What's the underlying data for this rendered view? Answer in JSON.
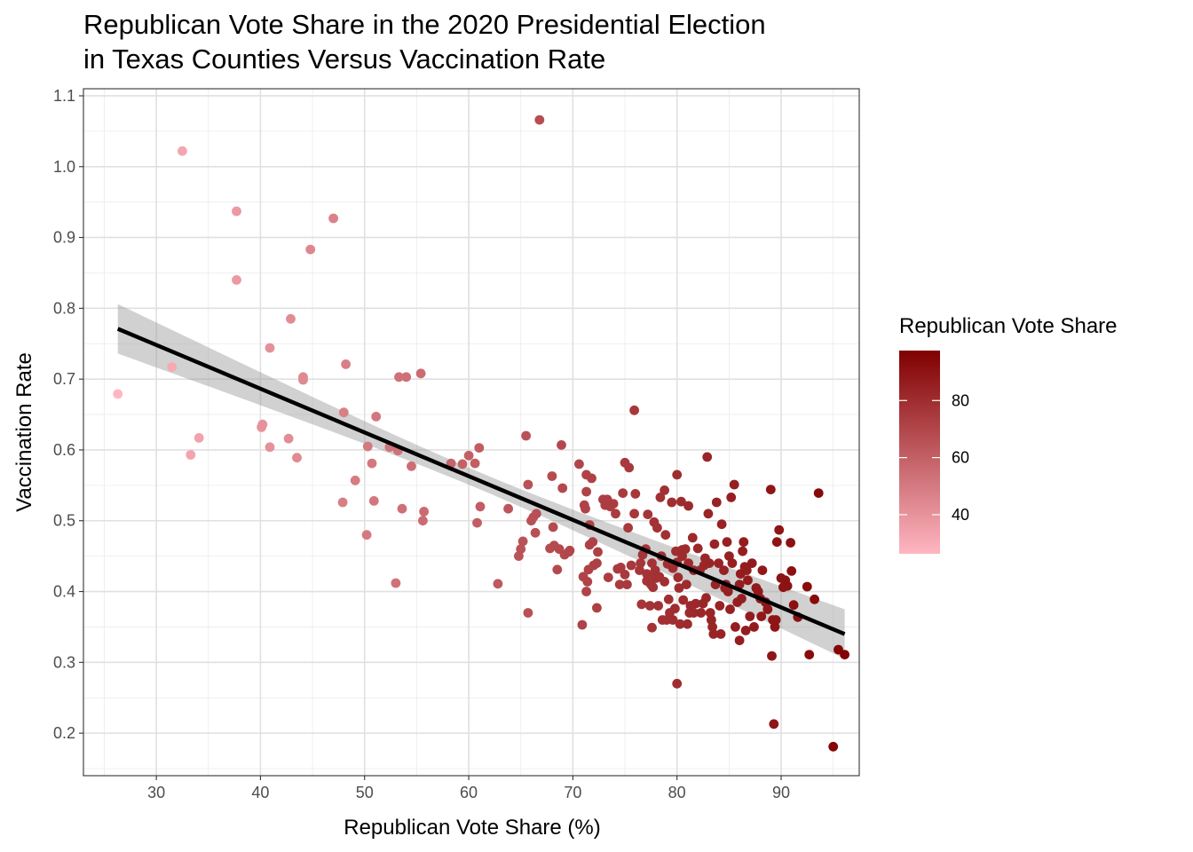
{
  "chart_data": {
    "type": "scatter",
    "title": "Republican Vote Share in the 2020 Presidential Election",
    "subtitle": "in Texas Counties Versus Vaccination Rate",
    "xlabel": "Republican Vote Share (%)",
    "ylabel": "Vaccination Rate",
    "xlim": [
      23,
      97.5
    ],
    "ylim": [
      0.14,
      1.11
    ],
    "x_ticks": [
      30,
      40,
      50,
      60,
      70,
      80,
      90
    ],
    "y_ticks": [
      0.2,
      0.3,
      0.4,
      0.5,
      0.6,
      0.7,
      0.8,
      0.9,
      1.0,
      1.1
    ],
    "x_tick_labels": [
      "30",
      "40",
      "50",
      "60",
      "70",
      "80",
      "90"
    ],
    "y_tick_labels": [
      "0.2",
      "0.3",
      "0.4",
      "0.5",
      "0.6",
      "0.7",
      "0.8",
      "0.9",
      "1.0",
      "1.1"
    ],
    "grid": true,
    "legend": {
      "title": "Republican Vote Share",
      "position": "right",
      "min": 26.3,
      "max": 97.5,
      "ticks": [
        40,
        60,
        80
      ],
      "tick_labels": [
        "40",
        "60",
        "80"
      ],
      "low_color": "#ffb6c1",
      "high_color": "#800000"
    },
    "trend": {
      "type": "linear",
      "x_range": [
        26.3,
        96.1
      ],
      "y_start": 0.771,
      "y_end": 0.34,
      "ci_halfwidth_ends": 0.035,
      "ci_halfwidth_mid": 0.012,
      "color": "#000000",
      "band_color": "#999999"
    },
    "points": [
      [
        26.3,
        0.679
      ],
      [
        31.5,
        0.717
      ],
      [
        32.5,
        1.022
      ],
      [
        33.3,
        0.593
      ],
      [
        34.1,
        0.617
      ],
      [
        37.7,
        0.937
      ],
      [
        37.7,
        0.84
      ],
      [
        40.1,
        0.632
      ],
      [
        40.2,
        0.636
      ],
      [
        40.9,
        0.744
      ],
      [
        40.9,
        0.604
      ],
      [
        42.7,
        0.616
      ],
      [
        42.9,
        0.785
      ],
      [
        43.5,
        0.589
      ],
      [
        44.1,
        0.703
      ],
      [
        44.1,
        0.699
      ],
      [
        44.8,
        0.883
      ],
      [
        47.0,
        0.927
      ],
      [
        47.9,
        0.526
      ],
      [
        48.0,
        0.653
      ],
      [
        48.2,
        0.721
      ],
      [
        49.1,
        0.557
      ],
      [
        50.2,
        0.48
      ],
      [
        50.3,
        0.605
      ],
      [
        50.7,
        0.581
      ],
      [
        50.9,
        0.528
      ],
      [
        51.1,
        0.647
      ],
      [
        52.4,
        0.604
      ],
      [
        53.0,
        0.412
      ],
      [
        53.2,
        0.599
      ],
      [
        53.3,
        0.703
      ],
      [
        53.6,
        0.517
      ],
      [
        54.0,
        0.703
      ],
      [
        54.5,
        0.577
      ],
      [
        55.4,
        0.708
      ],
      [
        55.6,
        0.5
      ],
      [
        55.7,
        0.513
      ],
      [
        58.3,
        0.581
      ],
      [
        59.4,
        0.58
      ],
      [
        60.0,
        0.592
      ],
      [
        60.6,
        0.581
      ],
      [
        60.8,
        0.497
      ],
      [
        61.0,
        0.603
      ],
      [
        61.1,
        0.52
      ],
      [
        62.8,
        0.411
      ],
      [
        63.8,
        0.517
      ],
      [
        64.8,
        0.45
      ],
      [
        65.0,
        0.46
      ],
      [
        65.2,
        0.471
      ],
      [
        65.5,
        0.62
      ],
      [
        65.7,
        0.551
      ],
      [
        65.7,
        0.37
      ],
      [
        66.0,
        0.5
      ],
      [
        66.2,
        0.505
      ],
      [
        66.4,
        0.483
      ],
      [
        66.5,
        0.51
      ],
      [
        66.8,
        1.066
      ],
      [
        67.8,
        0.461
      ],
      [
        68.0,
        0.563
      ],
      [
        68.1,
        0.491
      ],
      [
        68.2,
        0.465
      ],
      [
        68.5,
        0.431
      ],
      [
        68.7,
        0.46
      ],
      [
        68.9,
        0.607
      ],
      [
        69.0,
        0.546
      ],
      [
        69.2,
        0.452
      ],
      [
        69.6,
        0.456
      ],
      [
        69.7,
        0.458
      ],
      [
        70.6,
        0.58
      ],
      [
        70.9,
        0.353
      ],
      [
        71.0,
        0.421
      ],
      [
        71.1,
        0.522
      ],
      [
        71.2,
        0.517
      ],
      [
        71.3,
        0.541
      ],
      [
        71.3,
        0.565
      ],
      [
        71.3,
        0.4
      ],
      [
        71.4,
        0.414
      ],
      [
        71.5,
        0.431
      ],
      [
        71.6,
        0.466
      ],
      [
        71.6,
        0.494
      ],
      [
        71.8,
        0.56
      ],
      [
        71.9,
        0.47
      ],
      [
        72.0,
        0.437
      ],
      [
        72.3,
        0.44
      ],
      [
        72.3,
        0.377
      ],
      [
        72.4,
        0.456
      ],
      [
        72.9,
        0.53
      ],
      [
        73.1,
        0.522
      ],
      [
        73.3,
        0.53
      ],
      [
        73.4,
        0.42
      ],
      [
        73.6,
        0.52
      ],
      [
        73.9,
        0.524
      ],
      [
        74.1,
        0.51
      ],
      [
        74.3,
        0.432
      ],
      [
        74.5,
        0.41
      ],
      [
        74.6,
        0.434
      ],
      [
        74.8,
        0.539
      ],
      [
        75.0,
        0.424
      ],
      [
        75.0,
        0.582
      ],
      [
        75.2,
        0.41
      ],
      [
        75.3,
        0.49
      ],
      [
        75.4,
        0.575
      ],
      [
        75.6,
        0.437
      ],
      [
        75.9,
        0.51
      ],
      [
        75.9,
        0.656
      ],
      [
        76.0,
        0.538
      ],
      [
        76.4,
        0.43
      ],
      [
        76.5,
        0.44
      ],
      [
        76.6,
        0.382
      ],
      [
        76.7,
        0.452
      ],
      [
        77.0,
        0.46
      ],
      [
        77.1,
        0.425
      ],
      [
        77.1,
        0.415
      ],
      [
        77.2,
        0.509
      ],
      [
        77.4,
        0.42
      ],
      [
        77.4,
        0.38
      ],
      [
        77.5,
        0.41
      ],
      [
        77.6,
        0.349
      ],
      [
        77.6,
        0.44
      ],
      [
        77.7,
        0.406
      ],
      [
        77.8,
        0.498
      ],
      [
        77.9,
        0.43
      ],
      [
        78.0,
        0.419
      ],
      [
        78.1,
        0.49
      ],
      [
        78.2,
        0.38
      ],
      [
        78.3,
        0.421
      ],
      [
        78.4,
        0.533
      ],
      [
        78.5,
        0.45
      ],
      [
        78.6,
        0.36
      ],
      [
        78.8,
        0.414
      ],
      [
        78.8,
        0.543
      ],
      [
        78.9,
        0.48
      ],
      [
        79.0,
        0.36
      ],
      [
        79.1,
        0.439
      ],
      [
        79.2,
        0.389
      ],
      [
        79.3,
        0.37
      ],
      [
        79.5,
        0.526
      ],
      [
        79.6,
        0.36
      ],
      [
        79.6,
        0.433
      ],
      [
        79.8,
        0.376
      ],
      [
        79.9,
        0.457
      ],
      [
        80.0,
        0.441
      ],
      [
        80.0,
        0.27
      ],
      [
        80.0,
        0.565
      ],
      [
        80.1,
        0.42
      ],
      [
        80.2,
        0.405
      ],
      [
        80.3,
        0.354
      ],
      [
        80.4,
        0.527
      ],
      [
        80.5,
        0.45
      ],
      [
        80.5,
        0.459
      ],
      [
        80.6,
        0.388
      ],
      [
        80.8,
        0.46
      ],
      [
        80.9,
        0.41
      ],
      [
        81.0,
        0.354
      ],
      [
        81.1,
        0.521
      ],
      [
        81.1,
        0.44
      ],
      [
        81.2,
        0.37
      ],
      [
        81.3,
        0.38
      ],
      [
        81.5,
        0.476
      ],
      [
        81.6,
        0.43
      ],
      [
        81.6,
        0.37
      ],
      [
        81.8,
        0.383
      ],
      [
        82.0,
        0.461
      ],
      [
        82.2,
        0.43
      ],
      [
        82.3,
        0.37
      ],
      [
        82.5,
        0.383
      ],
      [
        82.6,
        0.437
      ],
      [
        82.7,
        0.447
      ],
      [
        82.8,
        0.391
      ],
      [
        82.9,
        0.59
      ],
      [
        83.0,
        0.51
      ],
      [
        83.1,
        0.44
      ],
      [
        83.2,
        0.37
      ],
      [
        83.3,
        0.36
      ],
      [
        83.4,
        0.35
      ],
      [
        83.5,
        0.34
      ],
      [
        83.6,
        0.467
      ],
      [
        83.7,
        0.41
      ],
      [
        83.8,
        0.526
      ],
      [
        84.0,
        0.44
      ],
      [
        84.1,
        0.38
      ],
      [
        84.2,
        0.34
      ],
      [
        84.3,
        0.495
      ],
      [
        84.5,
        0.43
      ],
      [
        84.6,
        0.405
      ],
      [
        84.7,
        0.41
      ],
      [
        84.8,
        0.47
      ],
      [
        84.9,
        0.4
      ],
      [
        85.0,
        0.45
      ],
      [
        85.1,
        0.375
      ],
      [
        85.2,
        0.533
      ],
      [
        85.3,
        0.44
      ],
      [
        85.5,
        0.551
      ],
      [
        85.6,
        0.35
      ],
      [
        85.8,
        0.385
      ],
      [
        86.0,
        0.331
      ],
      [
        86.0,
        0.41
      ],
      [
        86.1,
        0.425
      ],
      [
        86.2,
        0.39
      ],
      [
        86.3,
        0.457
      ],
      [
        86.4,
        0.47
      ],
      [
        86.5,
        0.435
      ],
      [
        86.6,
        0.345
      ],
      [
        86.7,
        0.43
      ],
      [
        86.8,
        0.416
      ],
      [
        87.0,
        0.365
      ],
      [
        87.2,
        0.44
      ],
      [
        87.4,
        0.35
      ],
      [
        87.6,
        0.405
      ],
      [
        87.8,
        0.4
      ],
      [
        88.0,
        0.39
      ],
      [
        88.1,
        0.365
      ],
      [
        88.2,
        0.43
      ],
      [
        88.5,
        0.385
      ],
      [
        88.7,
        0.375
      ],
      [
        89.0,
        0.544
      ],
      [
        89.1,
        0.309
      ],
      [
        89.2,
        0.36
      ],
      [
        89.3,
        0.213
      ],
      [
        89.4,
        0.35
      ],
      [
        89.5,
        0.36
      ],
      [
        89.6,
        0.47
      ],
      [
        89.8,
        0.487
      ],
      [
        90.0,
        0.419
      ],
      [
        90.2,
        0.406
      ],
      [
        90.4,
        0.416
      ],
      [
        90.6,
        0.408
      ],
      [
        90.9,
        0.469
      ],
      [
        91.0,
        0.429
      ],
      [
        91.2,
        0.381
      ],
      [
        91.6,
        0.364
      ],
      [
        92.5,
        0.407
      ],
      [
        92.7,
        0.311
      ],
      [
        93.2,
        0.389
      ],
      [
        93.6,
        0.539
      ],
      [
        95.0,
        0.181
      ],
      [
        95.5,
        0.318
      ],
      [
        96.1,
        0.311
      ]
    ]
  }
}
